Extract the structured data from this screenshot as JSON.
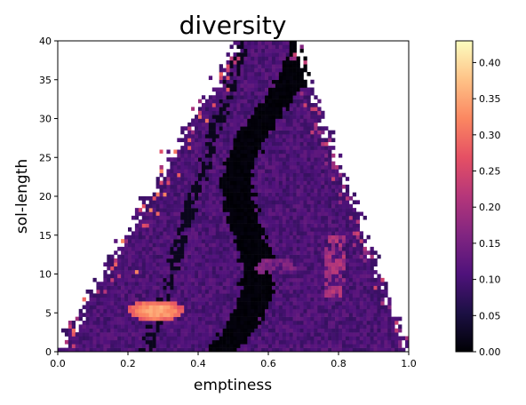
{
  "chart_data": {
    "type": "heatmap",
    "title": "diversity",
    "xlabel": "emptiness",
    "ylabel": "sol-length",
    "xlim": [
      0.0,
      1.0
    ],
    "ylim": [
      0,
      40
    ],
    "xticks": [
      "0.0",
      "0.2",
      "0.4",
      "0.6",
      "0.8",
      "1.0"
    ],
    "yticks": [
      "0",
      "5",
      "10",
      "15",
      "20",
      "25",
      "30",
      "35",
      "40"
    ],
    "colormap": "magma",
    "colorbar": {
      "range": [
        0.0,
        0.43
      ],
      "ticks": [
        "0.00",
        "0.05",
        "0.10",
        "0.15",
        "0.20",
        "0.25",
        "0.30",
        "0.35",
        "0.40"
      ]
    },
    "grid": false,
    "legend": "none",
    "description_regions": [
      {
        "label": "hot spot",
        "x": [
          0.2,
          0.35
        ],
        "y": [
          4,
          6.5
        ],
        "value": 0.3
      },
      {
        "label": "warm band",
        "x": [
          0.76,
          0.82
        ],
        "y": [
          7,
          15
        ],
        "value": 0.22
      },
      {
        "label": "dark ridge",
        "x": [
          0.45,
          0.75
        ],
        "y": [
          0,
          40
        ],
        "value": 0.01
      }
    ]
  }
}
